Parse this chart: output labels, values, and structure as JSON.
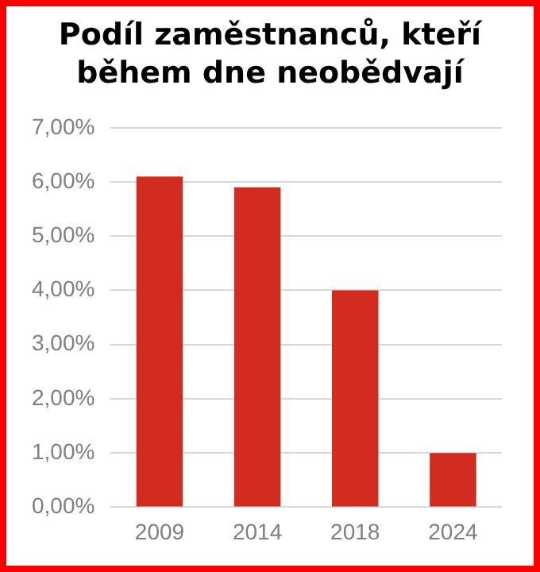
{
  "chart_data": {
    "type": "bar",
    "title": "Podíl zaměstnanců, kteří\nběhem dne neobědvají",
    "categories": [
      "2009",
      "2014",
      "2018",
      "2024"
    ],
    "values": [
      6.1,
      5.9,
      4.0,
      1.0
    ],
    "color": "#d22b1f",
    "ylim": [
      0,
      7
    ],
    "yticks": [
      {
        "value": 0,
        "label": "0,00%"
      },
      {
        "value": 1,
        "label": "1,00%"
      },
      {
        "value": 2,
        "label": "2,00%"
      },
      {
        "value": 3,
        "label": "3,00%"
      },
      {
        "value": 4,
        "label": "4,00%"
      },
      {
        "value": 5,
        "label": "5,00%"
      },
      {
        "value": 6,
        "label": "6,00%"
      },
      {
        "value": 7,
        "label": "7,00%"
      }
    ],
    "grid": "y",
    "legend": false
  }
}
